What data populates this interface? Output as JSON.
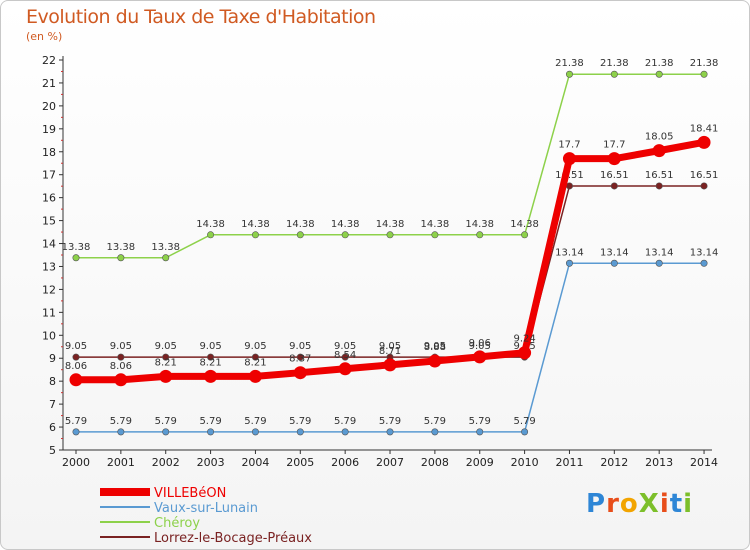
{
  "header": {
    "title": "Evolution du Taux de Taxe d'Habitation",
    "subtitle": "(en %)"
  },
  "logo": {
    "text": "ProXiti"
  },
  "chart_data": {
    "type": "line",
    "title": "Evolution du Taux de Taxe d'Habitation",
    "subtitle": "(en %)",
    "xlabel": "",
    "ylabel": "",
    "x": [
      2000,
      2001,
      2002,
      2003,
      2004,
      2005,
      2006,
      2007,
      2008,
      2009,
      2010,
      2011,
      2012,
      2013,
      2014
    ],
    "ylim": [
      5,
      22
    ],
    "yticks": [
      5,
      6,
      7,
      8,
      9,
      10,
      11,
      12,
      13,
      14,
      15,
      16,
      17,
      18,
      19,
      20,
      21,
      22
    ],
    "grid": false,
    "legend_position": "bottom-left",
    "series": [
      {
        "name": "Chéroy",
        "color": "#8dd14a",
        "values": [
          13.38,
          13.38,
          13.38,
          14.38,
          14.38,
          14.38,
          14.38,
          14.38,
          14.38,
          14.38,
          14.38,
          21.38,
          21.38,
          21.38,
          21.38
        ]
      },
      {
        "name": "Vaux-sur-Lunain",
        "color": "#5a9ad2",
        "values": [
          5.79,
          5.79,
          5.79,
          5.79,
          5.79,
          5.79,
          5.79,
          5.79,
          5.79,
          5.79,
          5.79,
          13.14,
          13.14,
          13.14,
          13.14
        ]
      },
      {
        "name": "Lorrez-le-Bocage-Préaux",
        "color": "#7a2222",
        "values": [
          9.05,
          9.05,
          9.05,
          9.05,
          9.05,
          9.05,
          9.05,
          9.05,
          9.05,
          9.05,
          9.05,
          16.51,
          16.51,
          16.51,
          16.51
        ]
      },
      {
        "name": "VILLEBéON",
        "color": "#ee0000",
        "bold": true,
        "values": [
          8.06,
          8.06,
          8.21,
          8.21,
          8.21,
          8.37,
          8.54,
          8.71,
          8.88,
          9.06,
          9.24,
          17.7,
          17.7,
          18.05,
          18.41
        ]
      }
    ],
    "legend_order": [
      "VILLEBéON",
      "Vaux-sur-Lunain",
      "Chéroy",
      "Lorrez-le-Bocage-Préaux"
    ]
  }
}
